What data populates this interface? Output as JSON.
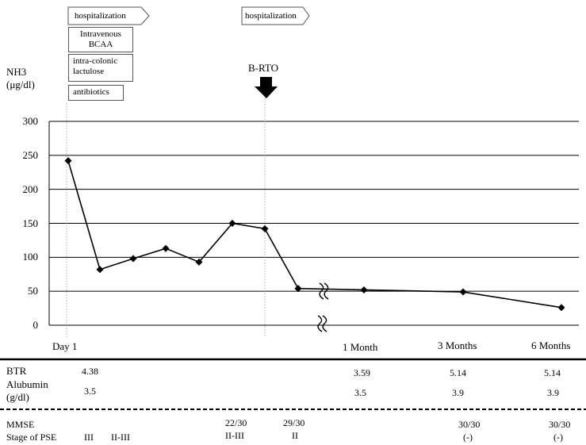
{
  "chart_data": {
    "type": "line",
    "ylabel_line1": "NH3",
    "ylabel_line2": "(μg/dl)",
    "ylim": [
      0,
      300
    ],
    "yticks": [
      "0",
      "50",
      "100",
      "150",
      "200",
      "250",
      "300"
    ],
    "grid": true,
    "series": [
      {
        "values": [
          242,
          82,
          98,
          113,
          93,
          150,
          142,
          54
        ]
      },
      {
        "values": [
          54,
          52,
          49,
          26
        ]
      }
    ],
    "xtick_labels": [
      "Day 1",
      "1 Month",
      "3 Months",
      "6 Months"
    ],
    "annotations": {
      "hospitalization_1": "hospitalization",
      "hospitalization_2": "hospitalization",
      "treatment_1": "Intravenous BCAA",
      "treatment_2": "intra-colonic lactulose",
      "treatment_3": "antibiotics",
      "procedure": "B-RTO"
    }
  },
  "table": {
    "btr_label": "BTR",
    "btr_values": [
      "4.38",
      "3.59",
      "5.14",
      "5.14"
    ],
    "albumin_label_line1": "Alubumin",
    "albumin_label_line2": "(g/dl)",
    "albumin_values": [
      "3.5",
      "3.5",
      "3.9",
      "3.9"
    ],
    "mmse_label": "MMSE",
    "mmse_values": [
      "22/30",
      "29/30",
      "30/30",
      "30/30"
    ],
    "pse_label": "Stage of PSE",
    "pse_values": [
      "III",
      "II-III",
      "II-III",
      "II",
      "(-)",
      "(-)"
    ]
  }
}
